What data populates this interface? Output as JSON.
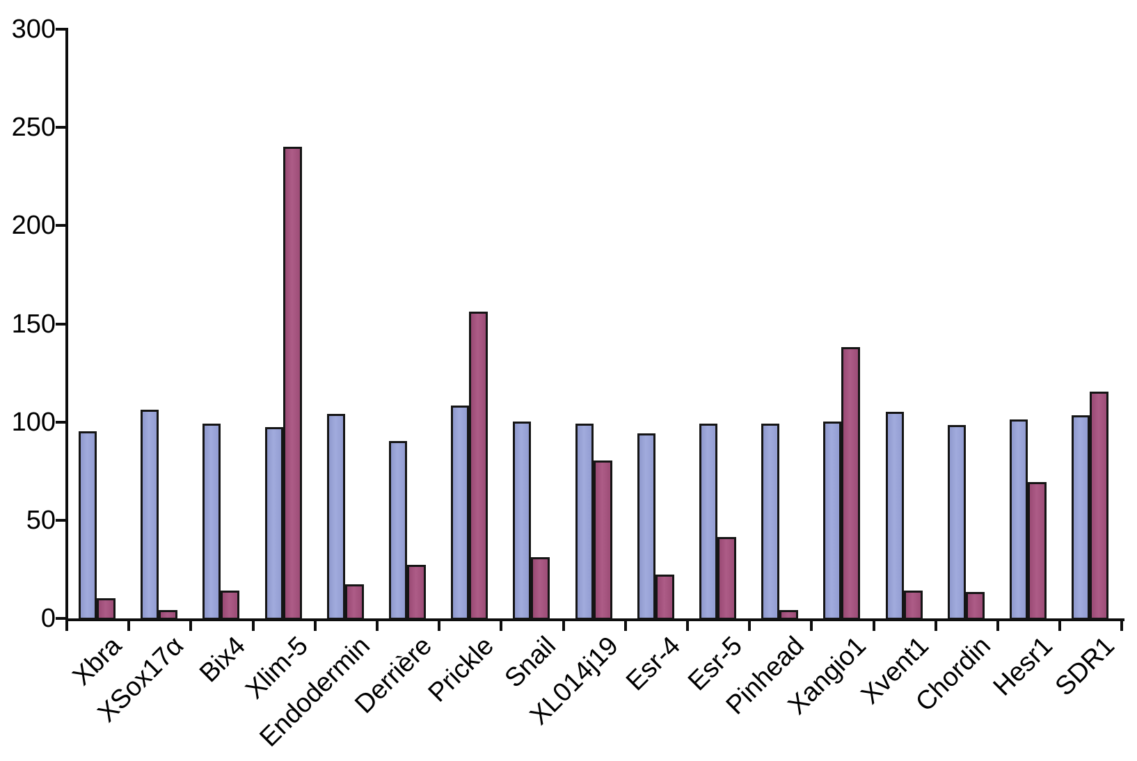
{
  "chart_data": {
    "type": "bar",
    "title": "",
    "xlabel": "",
    "ylabel": "",
    "categories": [
      "Xbra",
      "XSox17α",
      "Bix4",
      "Xlim-5",
      "Endodermin",
      "Derrière",
      "Prickle",
      "Snail",
      "XL014j19",
      "Esr-4",
      "Esr-5",
      "Pinhead",
      "Xangio1",
      "Xvent1",
      "Chordin",
      "Hesr1",
      "SDR1"
    ],
    "series": [
      {
        "name": "blue",
        "color": "#98A2D6",
        "values": [
          96,
          107,
          100,
          98,
          105,
          91,
          109,
          101,
          100,
          95,
          100,
          100,
          101,
          106,
          99,
          102,
          104
        ]
      },
      {
        "name": "maroon",
        "color": "#A5537F",
        "values": [
          11,
          5,
          15,
          241,
          18,
          28,
          157,
          32,
          81,
          23,
          42,
          5,
          139,
          15,
          14,
          70,
          116
        ]
      }
    ],
    "ylim": [
      0,
      300
    ],
    "yticks": [
      0,
      50,
      100,
      150,
      200,
      250,
      300
    ],
    "grid": false,
    "legend": "none",
    "x_tick_label_rotation_deg": 45,
    "outline_color": "#151515"
  }
}
